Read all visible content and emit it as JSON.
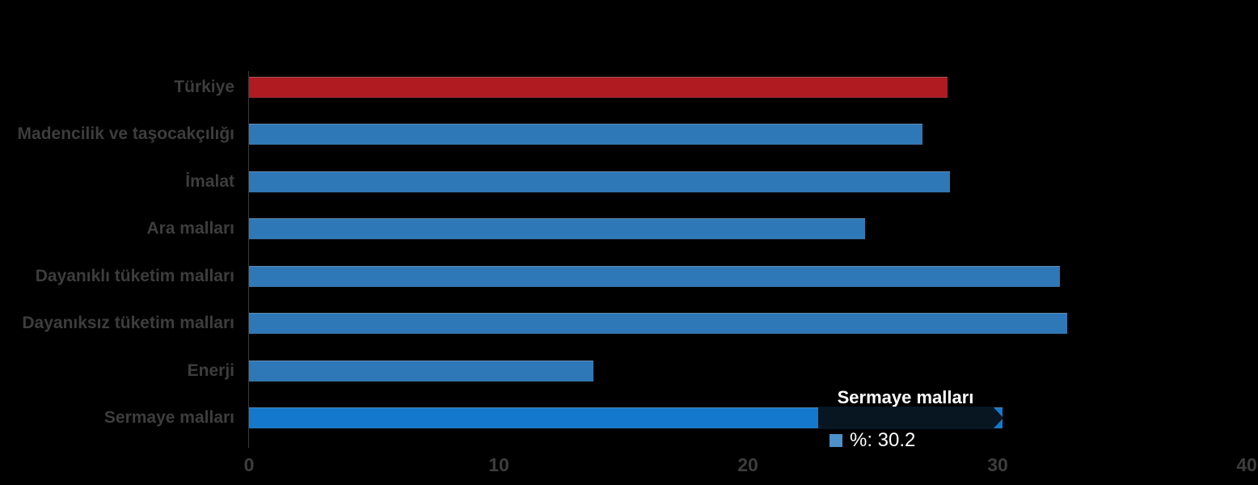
{
  "page": {
    "background": "#000000"
  },
  "chart_data": {
    "type": "bar",
    "orientation": "horizontal",
    "title": "",
    "xlabel": "",
    "ylabel": "",
    "categories": [
      "Türkiye",
      "Madencilik ve taşocakçılığı",
      "İmalat",
      "Ara malları",
      "Dayanıklı tüketim malları",
      "Dayanıksız tüketim malları",
      "Enerji",
      "Sermaye malları"
    ],
    "values": [
      28.0,
      27.0,
      28.1,
      24.7,
      32.5,
      32.8,
      13.8,
      30.2
    ],
    "unit": "%",
    "bar_roles": [
      "total",
      "default",
      "default",
      "default",
      "default",
      "default",
      "default",
      "active"
    ],
    "xlim": [
      0,
      40
    ],
    "x_ticks": [
      "0",
      "10",
      "20",
      "30",
      "40"
    ],
    "grid": false,
    "legend": false,
    "hovered_category": "Sermaye malları"
  },
  "tooltip": {
    "title": "Sermaye malları",
    "value_text": "%: 30.2"
  },
  "colors": {
    "bar_default": "#2e78b8",
    "bar_total": "#b01b22",
    "bar_active": "#1478cd",
    "category_label": "#3d3d3d",
    "tick_label": "#3d3d3d",
    "axis_line": "#3a3a3a",
    "tooltip_background": "#081622",
    "tooltip_text": "#ffffff",
    "legend_marker": "#4e90c9"
  }
}
